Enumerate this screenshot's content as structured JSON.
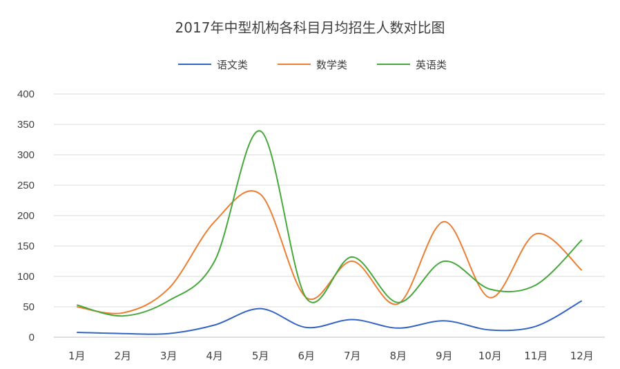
{
  "chart_data": {
    "type": "line",
    "title": "2017年中型机构各科目月均招生人数对比图",
    "categories": [
      "1月",
      "2月",
      "3月",
      "4月",
      "5月",
      "6月",
      "7月",
      "8月",
      "9月",
      "10月",
      "11月",
      "12月"
    ],
    "ylim": [
      0,
      400
    ],
    "yticks": [
      0,
      50,
      100,
      150,
      200,
      250,
      300,
      350,
      400
    ],
    "grid": true,
    "legend_position": "top",
    "smooth": true,
    "series": [
      {
        "name": "语文类",
        "color": "#3363c4",
        "values": [
          8,
          6,
          6,
          20,
          47,
          16,
          29,
          15,
          27,
          12,
          18,
          60
        ]
      },
      {
        "name": "数学类",
        "color": "#ed7d31",
        "values": [
          50,
          40,
          80,
          190,
          235,
          65,
          125,
          55,
          190,
          65,
          170,
          110
        ]
      },
      {
        "name": "英语类",
        "color": "#45a83b",
        "values": [
          53,
          35,
          60,
          125,
          339,
          64,
          132,
          57,
          125,
          79,
          86,
          160
        ]
      }
    ]
  }
}
